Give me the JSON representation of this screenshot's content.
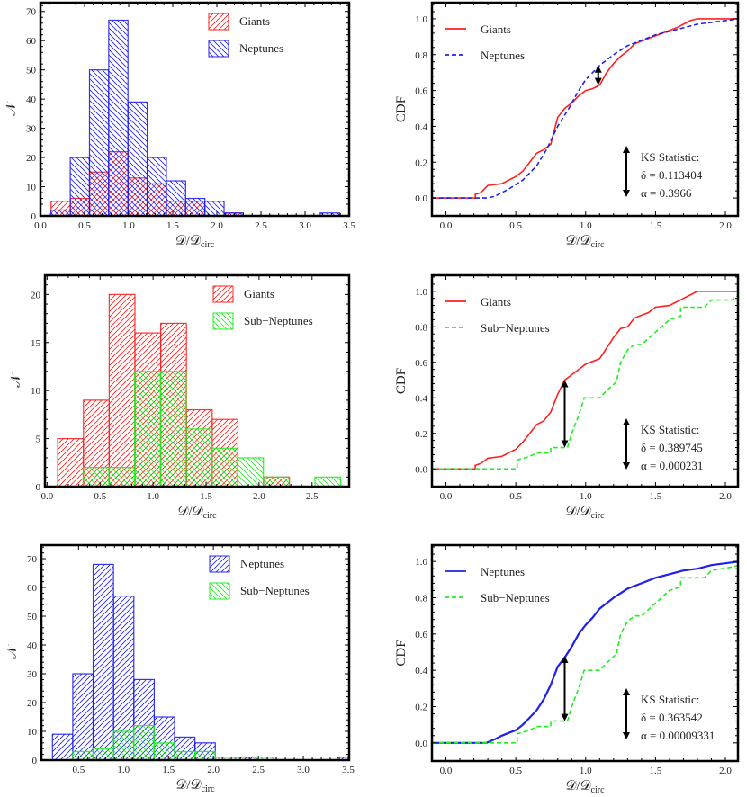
{
  "chart_data": [
    {
      "type": "bar",
      "subtype": "histogram",
      "xlabel": "𝒟/𝒟",
      "xlabel_sub": "circ",
      "ylabel": "𝒩",
      "xlim": [
        0,
        3.5
      ],
      "ylim": [
        0,
        73
      ],
      "xticks": [
        "0.0",
        "0.5",
        "1.0",
        "1.5",
        "2.0",
        "2.5",
        "3.0",
        "3.5"
      ],
      "xtick_values": [
        0,
        0.5,
        1,
        1.5,
        2,
        2.5,
        3,
        3.5
      ],
      "yticks": [
        "0",
        "10",
        "20",
        "30",
        "40",
        "50",
        "60",
        "70"
      ],
      "ytick_values": [
        0,
        10,
        20,
        30,
        40,
        50,
        60,
        70
      ],
      "legend_placement": "top-right",
      "series": [
        {
          "name": "Giants",
          "color": "#ff2020",
          "hatch": "forward",
          "bin_start": 0.12,
          "bin_width": 0.218,
          "counts": [
            5,
            6,
            15,
            22,
            13,
            11,
            5,
            5,
            0,
            1
          ]
        },
        {
          "name": "Neptunes",
          "color": "#2020ee",
          "hatch": "backward",
          "bin_start": 0.12,
          "bin_width": 0.218,
          "counts": [
            2,
            20,
            50,
            67,
            39,
            20,
            12,
            6,
            5,
            1,
            0,
            0,
            0,
            0,
            1
          ]
        }
      ]
    },
    {
      "type": "line",
      "subtype": "cdf",
      "xlabel": "𝒟/𝒟",
      "xlabel_sub": "circ",
      "ylabel": "CDF",
      "xlim": [
        -0.1,
        2.09
      ],
      "ylim": [
        -0.1,
        1.09
      ],
      "xticks": [
        "0.0",
        "0.5",
        "1.0",
        "1.5",
        "2.0"
      ],
      "xtick_values": [
        0,
        0.5,
        1,
        1.5,
        2
      ],
      "yticks": [
        "0.0",
        "0.2",
        "0.4",
        "0.6",
        "0.8",
        "1.0"
      ],
      "ytick_values": [
        0,
        0.2,
        0.4,
        0.6,
        0.8,
        1
      ],
      "legend_placement": "top-left",
      "series": [
        {
          "name": "Giants",
          "color": "#ff2020",
          "dash": "solid",
          "x": [
            -0.1,
            0.21,
            0.21,
            0.25,
            0.3,
            0.4,
            0.5,
            0.55,
            0.6,
            0.65,
            0.7,
            0.75,
            0.8,
            0.85,
            0.9,
            0.95,
            1.0,
            1.05,
            1.1,
            1.15,
            1.2,
            1.25,
            1.3,
            1.35,
            1.45,
            1.55,
            1.65,
            1.75,
            1.8,
            2.1
          ],
          "y": [
            0,
            0,
            0.02,
            0.03,
            0.07,
            0.08,
            0.12,
            0.15,
            0.2,
            0.25,
            0.27,
            0.3,
            0.45,
            0.5,
            0.53,
            0.57,
            0.6,
            0.61,
            0.63,
            0.7,
            0.75,
            0.79,
            0.82,
            0.86,
            0.89,
            0.92,
            0.95,
            0.99,
            1.0,
            1.0
          ]
        },
        {
          "name": "Neptunes",
          "color": "#2020ee",
          "dash": "dashed",
          "x": [
            -0.1,
            0.3,
            0.35,
            0.45,
            0.55,
            0.65,
            0.72,
            0.8,
            0.88,
            0.95,
            1.0,
            1.05,
            1.1,
            1.2,
            1.3,
            1.4,
            1.5,
            1.6,
            1.7,
            1.8,
            1.9,
            2.0,
            2.1
          ],
          "y": [
            0,
            0,
            0.01,
            0.05,
            0.1,
            0.18,
            0.27,
            0.4,
            0.5,
            0.6,
            0.66,
            0.7,
            0.74,
            0.8,
            0.85,
            0.88,
            0.91,
            0.93,
            0.95,
            0.97,
            0.98,
            0.99,
            1.0
          ]
        }
      ],
      "ks_arrow": {
        "x": 1.09,
        "y_from": 0.63,
        "y_to": 0.74
      },
      "ks": {
        "title": "KS Statistic:",
        "delta": "δ = 0.113404",
        "alpha": "α = 0.3966"
      }
    },
    {
      "type": "bar",
      "subtype": "histogram",
      "xlabel": "𝒟/𝒟",
      "xlabel_sub": "circ",
      "ylabel": "𝒩",
      "xlim": [
        -0.02,
        2.85
      ],
      "ylim": [
        0,
        22
      ],
      "xticks": [
        "0.0",
        "0.5",
        "1.0",
        "1.5",
        "2.0",
        "2.5"
      ],
      "xtick_values": [
        0,
        0.5,
        1,
        1.5,
        2,
        2.5
      ],
      "yticks": [
        "0",
        "5",
        "10",
        "15",
        "20"
      ],
      "ytick_values": [
        0,
        5,
        10,
        15,
        20
      ],
      "legend_placement": "top-right",
      "series": [
        {
          "name": "Giants",
          "color": "#ff2020",
          "hatch": "forward",
          "bin_start": 0.1,
          "bin_width": 0.243,
          "counts": [
            5,
            9,
            20,
            16,
            17,
            8,
            7,
            0,
            1
          ]
        },
        {
          "name": "Sub−Neptunes",
          "color": "#20ee20",
          "hatch": "backward",
          "bin_start": 0.34,
          "bin_width": 0.243,
          "counts": [
            2,
            2,
            12,
            12,
            6,
            4,
            3,
            1,
            0,
            1
          ]
        }
      ]
    },
    {
      "type": "line",
      "subtype": "cdf",
      "xlabel": "𝒟/𝒟",
      "xlabel_sub": "circ",
      "ylabel": "CDF",
      "xlim": [
        -0.1,
        2.09
      ],
      "ylim": [
        -0.1,
        1.09
      ],
      "xticks": [
        "0.0",
        "0.5",
        "1.0",
        "1.5",
        "2.0"
      ],
      "xtick_values": [
        0,
        0.5,
        1,
        1.5,
        2
      ],
      "yticks": [
        "0.0",
        "0.2",
        "0.4",
        "0.6",
        "0.8",
        "1.0"
      ],
      "ytick_values": [
        0,
        0.2,
        0.4,
        0.6,
        0.8,
        1
      ],
      "legend_placement": "top-left",
      "series": [
        {
          "name": "Giants",
          "color": "#ff2020",
          "dash": "solid",
          "x": [
            -0.1,
            0.21,
            0.21,
            0.25,
            0.3,
            0.4,
            0.5,
            0.55,
            0.6,
            0.65,
            0.7,
            0.75,
            0.8,
            0.85,
            0.9,
            0.95,
            1.0,
            1.1,
            1.15,
            1.2,
            1.25,
            1.3,
            1.35,
            1.45,
            1.5,
            1.6,
            1.7,
            1.8,
            2.1
          ],
          "y": [
            0,
            0,
            0.02,
            0.03,
            0.06,
            0.07,
            0.11,
            0.15,
            0.2,
            0.25,
            0.27,
            0.32,
            0.42,
            0.5,
            0.53,
            0.56,
            0.59,
            0.62,
            0.68,
            0.74,
            0.79,
            0.8,
            0.85,
            0.88,
            0.91,
            0.92,
            0.96,
            1.0,
            1.0
          ]
        },
        {
          "name": "Sub−Neptunes",
          "color": "#20ee20",
          "dash": "dashed",
          "x": [
            -0.1,
            0.51,
            0.51,
            0.6,
            0.65,
            0.75,
            0.75,
            0.87,
            0.9,
            0.95,
            0.99,
            1.1,
            1.15,
            1.22,
            1.25,
            1.3,
            1.35,
            1.4,
            1.5,
            1.6,
            1.68,
            1.68,
            1.85,
            1.9,
            2.05,
            2.1
          ],
          "y": [
            0,
            0,
            0.05,
            0.07,
            0.09,
            0.09,
            0.12,
            0.12,
            0.2,
            0.3,
            0.4,
            0.4,
            0.44,
            0.49,
            0.6,
            0.67,
            0.7,
            0.7,
            0.77,
            0.84,
            0.86,
            0.91,
            0.91,
            0.95,
            0.95,
            0.98
          ]
        }
      ],
      "ks_arrow": {
        "x": 0.85,
        "y_from": 0.12,
        "y_to": 0.5
      },
      "ks": {
        "title": "KS Statistic:",
        "delta": "δ = 0.389745",
        "alpha": "α = 0.000231"
      }
    },
    {
      "type": "bar",
      "subtype": "histogram",
      "xlabel": "𝒟/𝒟",
      "xlabel_sub": "circ",
      "ylabel": "𝒩",
      "xlim": [
        0.086,
        3.51
      ],
      "ylim": [
        0,
        74.7
      ],
      "xticks": [
        "0.5",
        "1.0",
        "1.5",
        "2.0",
        "2.5",
        "3.0",
        "3.5"
      ],
      "xtick_values": [
        0.5,
        1,
        1.5,
        2,
        2.5,
        3,
        3.5
      ],
      "yticks": [
        "0",
        "10",
        "20",
        "30",
        "40",
        "50",
        "60",
        "70"
      ],
      "ytick_values": [
        0,
        10,
        20,
        30,
        40,
        50,
        60,
        70
      ],
      "legend_placement": "top-right",
      "series": [
        {
          "name": "Neptunes",
          "color": "#2020ee",
          "hatch": "forward",
          "bin_start": 0.209,
          "bin_width": 0.2265,
          "counts": [
            9,
            30,
            68,
            57,
            28,
            15,
            8,
            6,
            0,
            1,
            0,
            0,
            0,
            0,
            1
          ]
        },
        {
          "name": "Sub−Neptunes",
          "color": "#20ee20",
          "hatch": "backward",
          "bin_start": 0.4355,
          "bin_width": 0.2265,
          "counts": [
            3,
            4,
            10,
            12,
            6,
            3,
            3,
            1,
            0,
            1
          ]
        }
      ]
    },
    {
      "type": "line",
      "subtype": "cdf",
      "xlabel": "𝒟/𝒟",
      "xlabel_sub": "circ",
      "ylabel": "CDF",
      "xlim": [
        -0.1,
        2.09
      ],
      "ylim": [
        -0.1,
        1.09
      ],
      "xticks": [
        "0.0",
        "0.5",
        "1.0",
        "1.5",
        "2.0"
      ],
      "xtick_values": [
        0,
        0.5,
        1,
        1.5,
        2
      ],
      "yticks": [
        "0.0",
        "0.2",
        "0.4",
        "0.6",
        "0.8",
        "1.0"
      ],
      "ytick_values": [
        0,
        0.2,
        0.4,
        0.6,
        0.8,
        1
      ],
      "legend_placement": "top-left",
      "series": [
        {
          "name": "Neptunes",
          "color": "#2020ee",
          "dash": "solid",
          "x": [
            -0.1,
            0.29,
            0.35,
            0.4,
            0.5,
            0.55,
            0.6,
            0.65,
            0.7,
            0.75,
            0.8,
            0.85,
            0.9,
            0.95,
            1.0,
            1.05,
            1.1,
            1.2,
            1.3,
            1.4,
            1.5,
            1.6,
            1.7,
            1.8,
            1.9,
            2.0,
            2.1
          ],
          "y": [
            0,
            0,
            0.02,
            0.04,
            0.07,
            0.1,
            0.14,
            0.18,
            0.24,
            0.32,
            0.42,
            0.47,
            0.53,
            0.6,
            0.65,
            0.69,
            0.74,
            0.8,
            0.85,
            0.88,
            0.91,
            0.93,
            0.95,
            0.96,
            0.98,
            0.99,
            1.0
          ]
        },
        {
          "name": "Sub−Neptunes",
          "color": "#20ee20",
          "dash": "dashed",
          "x": [
            -0.1,
            0.51,
            0.51,
            0.6,
            0.65,
            0.75,
            0.75,
            0.87,
            0.9,
            0.95,
            0.99,
            1.1,
            1.15,
            1.22,
            1.25,
            1.3,
            1.35,
            1.4,
            1.5,
            1.6,
            1.68,
            1.68,
            1.85,
            1.9,
            2.05,
            2.1
          ],
          "y": [
            0,
            0,
            0.05,
            0.07,
            0.09,
            0.09,
            0.12,
            0.12,
            0.2,
            0.3,
            0.4,
            0.4,
            0.44,
            0.49,
            0.6,
            0.67,
            0.7,
            0.7,
            0.77,
            0.84,
            0.86,
            0.91,
            0.91,
            0.95,
            0.97,
            0.98
          ]
        }
      ],
      "ks_arrow": {
        "x": 0.85,
        "y_from": 0.12,
        "y_to": 0.48
      },
      "ks": {
        "title": "KS Statistic:",
        "delta": "δ = 0.363542",
        "alpha": "α = 0.00009331"
      }
    }
  ]
}
